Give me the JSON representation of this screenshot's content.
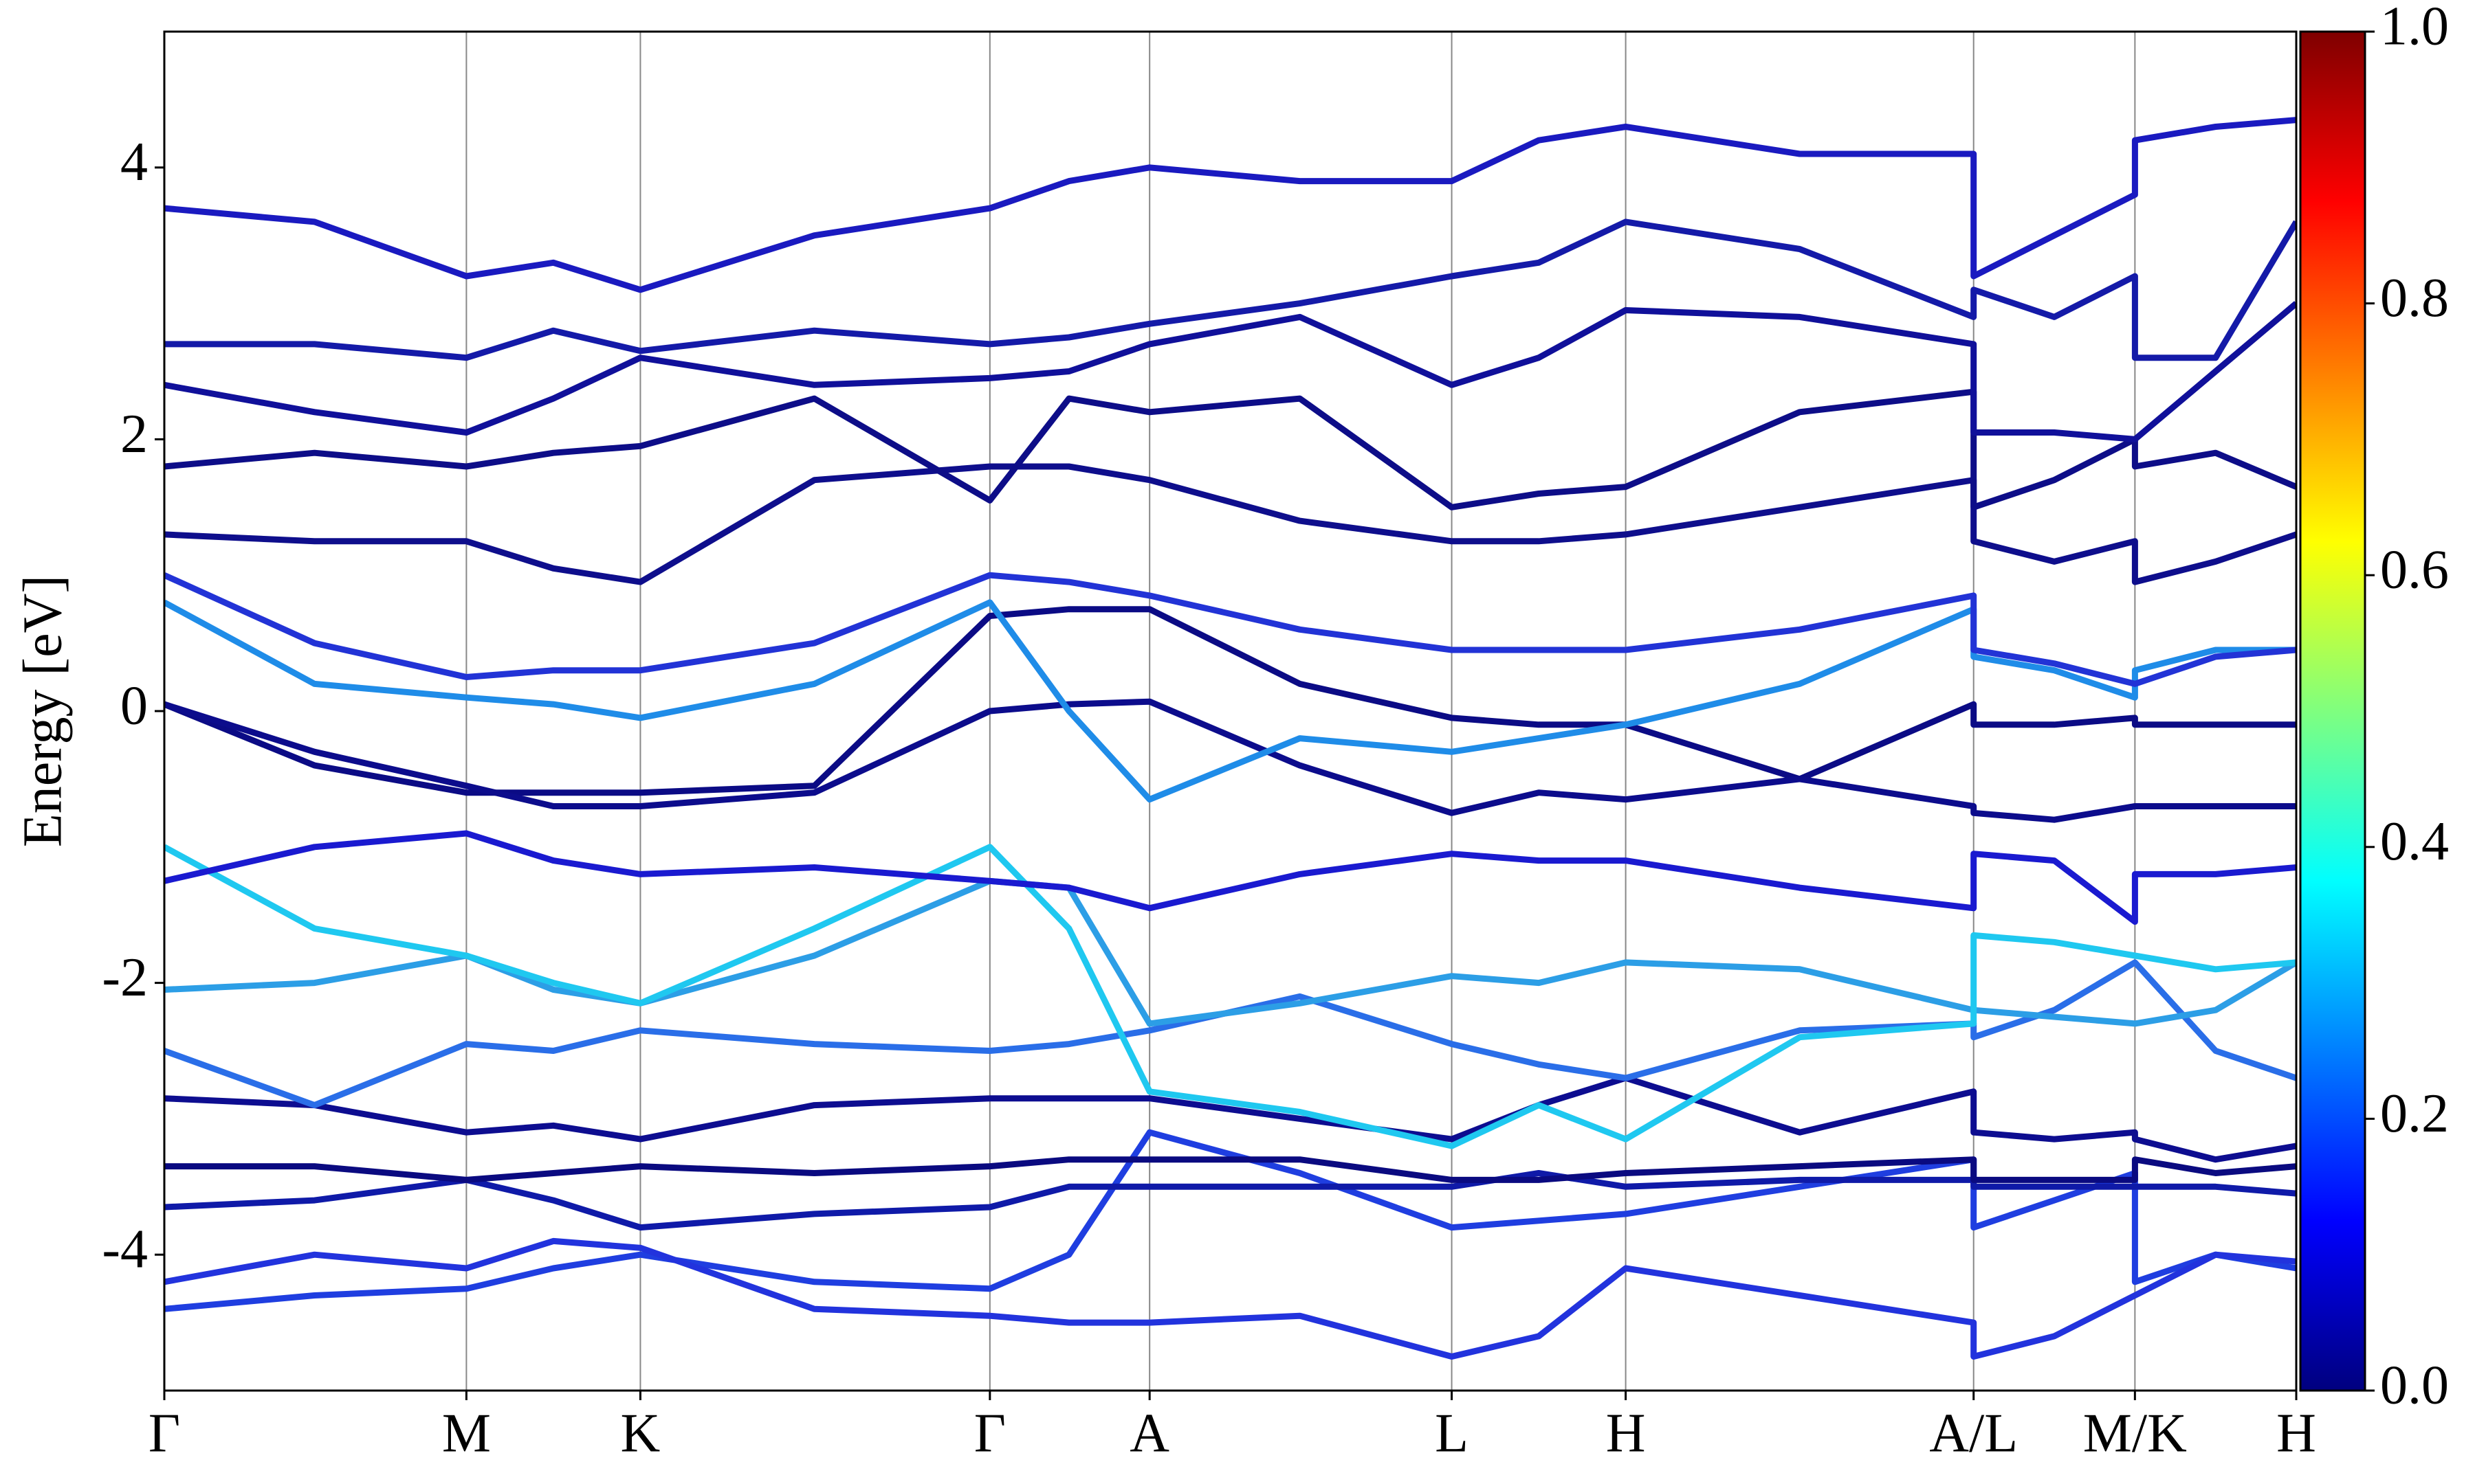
{
  "chart_data": {
    "type": "line",
    "y_label": "Energy [eV]",
    "x": [
      0,
      95,
      191,
      246,
      301,
      411,
      522,
      572,
      623,
      718,
      814,
      869,
      924,
      1034,
      1144,
      1144,
      1195,
      1246,
      1246,
      1297,
      1348
    ],
    "xlim": [
      0,
      1348
    ],
    "xticks": [
      {
        "value": 0,
        "label": "Γ"
      },
      {
        "value": 191,
        "label": "M"
      },
      {
        "value": 301,
        "label": "K"
      },
      {
        "value": 522,
        "label": "Γ"
      },
      {
        "value": 623,
        "label": "A"
      },
      {
        "value": 814,
        "label": "L"
      },
      {
        "value": 924,
        "label": "H"
      },
      {
        "value": 1144,
        "label": "A/L"
      },
      {
        "value": 1246,
        "label": "M/K"
      },
      {
        "value": 1348,
        "label": "H"
      }
    ],
    "ylim": [
      -5,
      5
    ],
    "yticks": [
      -4,
      -2,
      0,
      2,
      4
    ],
    "grid": "x",
    "series": [
      {
        "color": "#1f3ee0",
        "values": [
          -4.4,
          -4.3,
          -4.25,
          -4.1,
          -4.0,
          -4.2,
          -4.25,
          -4.0,
          -3.1,
          -3.4,
          -3.8,
          -3.75,
          -3.7,
          -3.5,
          -3.3,
          -3.8,
          -3.6,
          -3.4,
          -4.2,
          -4.0,
          -4.1
        ]
      },
      {
        "color": "#2233dd",
        "values": [
          -4.2,
          -4.0,
          -4.1,
          -3.9,
          -3.95,
          -4.4,
          -4.45,
          -4.5,
          -4.5,
          -4.45,
          -4.75,
          -4.6,
          -4.1,
          -4.3,
          -4.5,
          -4.75,
          -4.6,
          -4.3,
          -4.3,
          -4.0,
          -4.05
        ]
      },
      {
        "color": "#0f1aa8",
        "values": [
          -3.65,
          -3.6,
          -3.45,
          -3.6,
          -3.8,
          -3.7,
          -3.65,
          -3.5,
          -3.5,
          -3.5,
          -3.5,
          -3.4,
          -3.5,
          -3.45,
          -3.45,
          -3.5,
          -3.5,
          -3.5,
          -3.5,
          -3.5,
          -3.55
        ]
      },
      {
        "color": "#0a0a80",
        "values": [
          -3.35,
          -3.35,
          -3.45,
          -3.4,
          -3.35,
          -3.4,
          -3.35,
          -3.3,
          -3.3,
          -3.3,
          -3.45,
          -3.45,
          -3.4,
          -3.35,
          -3.3,
          -3.45,
          -3.45,
          -3.45,
          -3.3,
          -3.4,
          -3.35
        ]
      },
      {
        "color": "#0d0d90",
        "values": [
          -2.85,
          -2.9,
          -3.1,
          -3.05,
          -3.15,
          -2.9,
          -2.85,
          -2.85,
          -2.85,
          -3.0,
          -3.15,
          -2.9,
          -2.7,
          -3.1,
          -2.8,
          -3.1,
          -3.15,
          -3.1,
          -3.15,
          -3.3,
          -3.2
        ]
      },
      {
        "color": "#2a6ee8",
        "values": [
          -2.5,
          -2.9,
          -2.45,
          -2.5,
          -2.35,
          -2.45,
          -2.5,
          -2.45,
          -2.35,
          -2.1,
          -2.45,
          -2.6,
          -2.7,
          -2.35,
          -2.3,
          -2.4,
          -2.2,
          -1.85,
          -1.85,
          -2.5,
          -2.7
        ]
      },
      {
        "color": "#2c9ee6",
        "values": [
          -2.05,
          -2.0,
          -1.8,
          -2.05,
          -2.15,
          -1.8,
          -1.25,
          -1.3,
          -2.3,
          -2.15,
          -1.95,
          -2.0,
          -1.85,
          -1.9,
          -2.2,
          -2.2,
          -2.25,
          -2.3,
          -2.3,
          -2.2,
          -1.85
        ]
      },
      {
        "color": "#1fc8f0",
        "values": [
          -1.0,
          -1.6,
          -1.8,
          -2.0,
          -2.15,
          -1.6,
          -1.0,
          -1.6,
          -2.8,
          -2.95,
          -3.2,
          -2.9,
          -3.15,
          -2.4,
          -2.3,
          -1.65,
          -1.7,
          -1.8,
          -1.8,
          -1.9,
          -1.85
        ]
      },
      {
        "color": "#1a1ad0",
        "values": [
          -1.25,
          -1.0,
          -0.9,
          -1.1,
          -1.2,
          -1.15,
          -1.25,
          -1.3,
          -1.45,
          -1.2,
          -1.05,
          -1.1,
          -1.1,
          -1.3,
          -1.45,
          -1.05,
          -1.1,
          -1.55,
          -1.2,
          -1.2,
          -1.15
        ]
      },
      {
        "color": "#0b0b85",
        "values": [
          0.05,
          -0.4,
          -0.6,
          -0.6,
          -0.6,
          -0.55,
          0.7,
          0.75,
          0.75,
          0.2,
          -0.05,
          -0.1,
          -0.1,
          -0.5,
          0.05,
          -0.1,
          -0.1,
          -0.05,
          -0.1,
          -0.1,
          -0.1
        ]
      },
      {
        "color": "#0c0c8c",
        "values": [
          0.05,
          -0.3,
          -0.55,
          -0.7,
          -0.7,
          -0.6,
          0.0,
          0.05,
          0.07,
          -0.4,
          -0.75,
          -0.6,
          -0.65,
          -0.5,
          -0.7,
          -0.75,
          -0.8,
          -0.7,
          -0.7,
          -0.7,
          -0.7
        ]
      },
      {
        "color": "#1f8ce8",
        "values": [
          0.8,
          0.2,
          0.1,
          0.05,
          -0.05,
          0.2,
          0.8,
          0.0,
          -0.65,
          -0.2,
          -0.3,
          -0.2,
          -0.1,
          0.2,
          0.75,
          0.4,
          0.3,
          0.1,
          0.3,
          0.45,
          0.45
        ]
      },
      {
        "color": "#2233d6",
        "values": [
          1.0,
          0.5,
          0.25,
          0.3,
          0.3,
          0.5,
          1.0,
          0.95,
          0.85,
          0.6,
          0.45,
          0.45,
          0.45,
          0.6,
          0.85,
          0.45,
          0.35,
          0.2,
          0.2,
          0.4,
          0.45
        ]
      },
      {
        "color": "#0e0e8c",
        "values": [
          1.3,
          1.25,
          1.25,
          1.05,
          0.95,
          1.7,
          1.8,
          1.8,
          1.7,
          1.4,
          1.25,
          1.25,
          1.3,
          1.5,
          1.7,
          1.25,
          1.1,
          1.25,
          0.95,
          1.1,
          1.3
        ]
      },
      {
        "color": "#0d0d88",
        "values": [
          1.8,
          1.9,
          1.8,
          1.9,
          1.95,
          2.3,
          1.55,
          2.3,
          2.2,
          2.3,
          1.5,
          1.6,
          1.65,
          2.2,
          2.35,
          1.5,
          1.7,
          2.0,
          1.8,
          1.9,
          1.65
        ]
      },
      {
        "color": "#10109a",
        "values": [
          2.4,
          2.2,
          2.05,
          2.3,
          2.6,
          2.4,
          2.45,
          2.5,
          2.7,
          2.9,
          2.4,
          2.6,
          2.95,
          2.9,
          2.7,
          2.05,
          2.05,
          2.0,
          2.0,
          2.5,
          3.0
        ]
      },
      {
        "color": "#141aa8",
        "values": [
          2.7,
          2.7,
          2.6,
          2.8,
          2.65,
          2.8,
          2.7,
          2.75,
          2.85,
          3.0,
          3.2,
          3.3,
          3.6,
          3.4,
          2.9,
          3.1,
          2.9,
          3.2,
          2.6,
          2.6,
          3.6
        ]
      },
      {
        "color": "#1a1ac0",
        "values": [
          3.7,
          3.6,
          3.2,
          3.3,
          3.1,
          3.5,
          3.7,
          3.9,
          4.0,
          3.9,
          3.9,
          4.2,
          4.3,
          4.1,
          4.1,
          3.2,
          3.5,
          3.8,
          4.2,
          4.3,
          4.35
        ]
      }
    ],
    "colorbar": {
      "lim": [
        0,
        1
      ],
      "ticks": [
        {
          "value": 0,
          "label": "0.0"
        },
        0.2,
        0.4,
        0.6,
        0.8,
        {
          "value": 1,
          "label": "1.0"
        }
      ],
      "colors": [
        "#00007f",
        "#0000ff",
        "#007fff",
        "#00ffff",
        "#7fff7f",
        "#ffff00",
        "#ff7f00",
        "#ff0000",
        "#7f0000"
      ]
    }
  }
}
